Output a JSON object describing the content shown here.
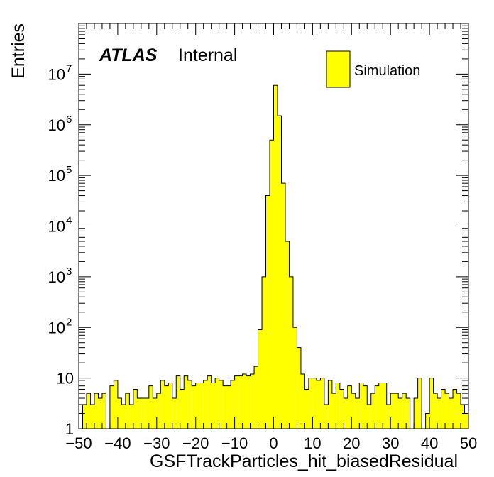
{
  "chart_data": {
    "type": "bar",
    "style": "histogram",
    "x_label": "GSFTrackParticles_hit_biasedResidual",
    "y_label": "Entries",
    "xlim": [
      -50,
      50
    ],
    "ylim": [
      1,
      100000000
    ],
    "y_scale": "log",
    "x_ticks": [
      "−50",
      "−40",
      "−30",
      "−20",
      "−10",
      "0",
      "10",
      "20",
      "30",
      "40",
      "50"
    ],
    "y_ticks": [
      {
        "base": "1",
        "exp": ""
      },
      {
        "base": "10",
        "exp": ""
      },
      {
        "base": "10",
        "exp": "2"
      },
      {
        "base": "10",
        "exp": "3"
      },
      {
        "base": "10",
        "exp": "4"
      },
      {
        "base": "10",
        "exp": "5"
      },
      {
        "base": "10",
        "exp": "6"
      },
      {
        "base": "10",
        "exp": "7"
      }
    ],
    "bin_width": 1,
    "bin_low_edges": [
      -50,
      -49,
      -48,
      -47,
      -46,
      -45,
      -44,
      -43,
      -42,
      -41,
      -40,
      -39,
      -38,
      -37,
      -36,
      -35,
      -34,
      -33,
      -32,
      -31,
      -30,
      -29,
      -28,
      -27,
      -26,
      -25,
      -24,
      -23,
      -22,
      -21,
      -20,
      -19,
      -18,
      -17,
      -16,
      -15,
      -14,
      -13,
      -12,
      -11,
      -10,
      -9,
      -8,
      -7,
      -6,
      -5,
      -4,
      -3,
      -2,
      -1,
      0,
      1,
      2,
      3,
      4,
      5,
      6,
      7,
      8,
      9,
      10,
      11,
      12,
      13,
      14,
      15,
      16,
      17,
      18,
      19,
      20,
      21,
      22,
      23,
      24,
      25,
      26,
      27,
      28,
      29,
      30,
      31,
      32,
      33,
      34,
      35,
      36,
      37,
      38,
      39,
      40,
      41,
      42,
      43,
      44,
      45,
      46,
      47,
      48,
      49
    ],
    "series": [
      {
        "name": "Simulation",
        "color": "#ffff00",
        "values": [
          1,
          3,
          5,
          3,
          5,
          4,
          5,
          1,
          7,
          9,
          4,
          3,
          5,
          3,
          6,
          4,
          4,
          4,
          7,
          4,
          5,
          9,
          7,
          8,
          4,
          11,
          6,
          11,
          9,
          7,
          8,
          8,
          9,
          11,
          8,
          10,
          9,
          7,
          7,
          9,
          11,
          11,
          12,
          11,
          12,
          17,
          90,
          1000,
          40000,
          500000,
          6000000,
          1500000,
          70000,
          5000,
          1000,
          100,
          40,
          12,
          6,
          10,
          10,
          9,
          10,
          3,
          9,
          5,
          8,
          6,
          4,
          7,
          5,
          4,
          8,
          7,
          3,
          5,
          7,
          8,
          8,
          3,
          5,
          5,
          4,
          5,
          4,
          1,
          4,
          10,
          1,
          2,
          10,
          5,
          4,
          6,
          5,
          4,
          6,
          5,
          3,
          2
        ]
      }
    ],
    "legend": {
      "position": "top-right",
      "entries": [
        "Simulation"
      ]
    },
    "grid": false
  },
  "label": {
    "experiment": "ATLAS",
    "status": "Internal"
  },
  "colors": {
    "fill": "#ffff00",
    "line": "#000000",
    "background": "#ffffff"
  }
}
